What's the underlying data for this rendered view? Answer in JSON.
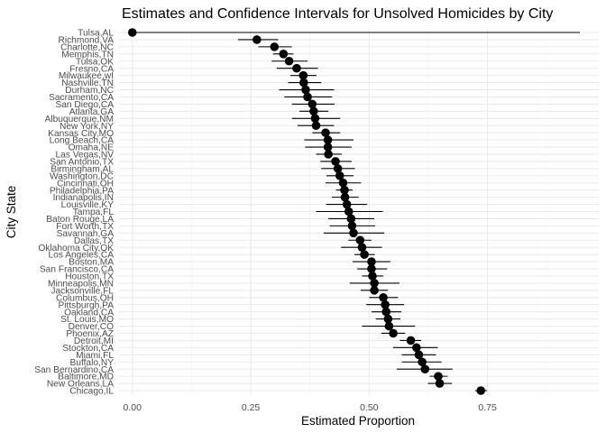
{
  "chart_data": {
    "type": "scatter",
    "title": "Estimates and Confidence Intervals for Unsolved Homicides by City",
    "xlabel": "Estimated Proportion",
    "ylabel": "City State",
    "xlim": [
      -0.03,
      0.985
    ],
    "x_ticks": [
      0.0,
      0.25,
      0.5,
      0.75
    ],
    "x_tick_labels": [
      "0.00",
      "0.25",
      "0.50",
      "0.75"
    ],
    "grid": true,
    "legend": "none",
    "categories": [
      "Tulsa,AL",
      "Richmond,VA",
      "Charlotte,NC",
      "Memphis,TN",
      "Tulsa,OK",
      "Fresno,CA",
      "Milwaukee,wI",
      "Nashville,TN",
      "Durham,NC",
      "Sacramento,CA",
      "San Diego,CA",
      "Atlanta,GA",
      "Albuquerque,NM",
      "New York,NY",
      "Kansas City,MO",
      "Long Beach,CA",
      "Omaha,NE",
      "Las Vegas,NV",
      "San Antonio,TX",
      "Birmingham,AL",
      "Washington,DC",
      "Cincinnati,OH",
      "Philadelphia,PA",
      "Indianapolis,IN",
      "Louisville,KY",
      "Tampa,FL",
      "Baton Rouge,LA",
      "Fort Worth,TX",
      "Savannah,GA",
      "Dallas,TX",
      "Oklahoma City,OK",
      "Los Angeles,CA",
      "Boston,MA",
      "San Francisco,CA",
      "Houston,TX",
      "Minneapolis,MN",
      "Jacksonville,FL",
      "Columbus,OH",
      "Pittsburgh,PA",
      "Oakland,CA",
      "St. Louis,MO",
      "Denver,CO",
      "Phoenix,AZ",
      "Detroit,MI",
      "Stockton,CA",
      "Miami,FL",
      "Buffalo,NY",
      "San Bernardino,CA",
      "Baltimore,MD",
      "New Orleans,LA",
      "Chicago,IL"
    ],
    "estimate": [
      0.0,
      0.263,
      0.3,
      0.319,
      0.331,
      0.347,
      0.361,
      0.362,
      0.366,
      0.37,
      0.38,
      0.383,
      0.386,
      0.388,
      0.408,
      0.413,
      0.413,
      0.414,
      0.429,
      0.434,
      0.438,
      0.445,
      0.448,
      0.449,
      0.453,
      0.457,
      0.462,
      0.464,
      0.467,
      0.481,
      0.485,
      0.49,
      0.505,
      0.505,
      0.507,
      0.511,
      0.511,
      0.53,
      0.534,
      0.536,
      0.54,
      0.542,
      0.551,
      0.588,
      0.6,
      0.605,
      0.612,
      0.618,
      0.646,
      0.649,
      0.736
    ],
    "lower": [
      0.0,
      0.223,
      0.266,
      0.297,
      0.294,
      0.305,
      0.334,
      0.329,
      0.31,
      0.321,
      0.337,
      0.353,
      0.337,
      0.349,
      0.38,
      0.363,
      0.365,
      0.388,
      0.397,
      0.399,
      0.41,
      0.408,
      0.43,
      0.421,
      0.409,
      0.388,
      0.414,
      0.417,
      0.404,
      0.456,
      0.441,
      0.469,
      0.465,
      0.475,
      0.485,
      0.459,
      0.482,
      0.5,
      0.494,
      0.505,
      0.514,
      0.485,
      0.526,
      0.565,
      0.551,
      0.569,
      0.569,
      0.558,
      0.628,
      0.624,
      0.724
    ],
    "upper": [
      0.945,
      0.308,
      0.337,
      0.34,
      0.37,
      0.392,
      0.389,
      0.399,
      0.426,
      0.422,
      0.427,
      0.414,
      0.439,
      0.426,
      0.439,
      0.467,
      0.463,
      0.442,
      0.463,
      0.47,
      0.467,
      0.483,
      0.465,
      0.478,
      0.496,
      0.529,
      0.511,
      0.513,
      0.532,
      0.505,
      0.527,
      0.512,
      0.545,
      0.538,
      0.53,
      0.564,
      0.54,
      0.561,
      0.574,
      0.568,
      0.566,
      0.597,
      0.576,
      0.61,
      0.645,
      0.641,
      0.653,
      0.676,
      0.666,
      0.675,
      0.749
    ]
  }
}
